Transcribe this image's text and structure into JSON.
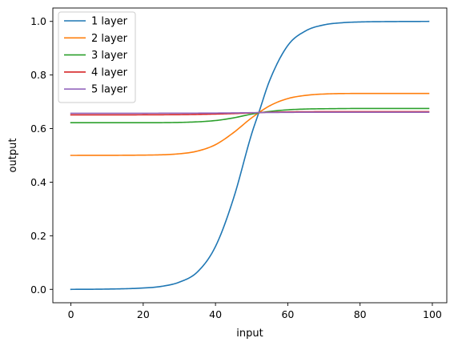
{
  "chart_data": {
    "type": "line",
    "xlabel": "input",
    "ylabel": "output",
    "xlim": [
      -5,
      104
    ],
    "ylim": [
      -0.05,
      1.05
    ],
    "x_ticks": [
      0,
      20,
      40,
      60,
      80,
      100
    ],
    "y_ticks": [
      0.0,
      0.2,
      0.4,
      0.6,
      0.8,
      1.0
    ],
    "x_tick_labels": [
      "0",
      "20",
      "40",
      "60",
      "80",
      "100"
    ],
    "y_tick_labels": [
      "0.0",
      "0.2",
      "0.4",
      "0.6",
      "0.8",
      "1.0"
    ],
    "grid": false,
    "legend_position": "upper-left",
    "x_range": [
      0,
      99
    ],
    "series": [
      {
        "name": "1 layer",
        "color": "#1f77b4",
        "x": [
          0,
          10,
          20,
          25,
          30,
          35,
          40,
          45,
          50,
          52,
          55,
          60,
          65,
          70,
          75,
          80,
          90,
          99
        ],
        "y": [
          0.0,
          0.001,
          0.005,
          0.011,
          0.027,
          0.065,
          0.16,
          0.34,
          0.58,
          0.66,
          0.78,
          0.91,
          0.965,
          0.987,
          0.995,
          0.998,
          0.9995,
          1.0
        ]
      },
      {
        "name": "2 layer",
        "color": "#ff7f0e",
        "x": [
          0,
          20,
          30,
          35,
          40,
          45,
          50,
          55,
          60,
          65,
          70,
          80,
          99
        ],
        "y": [
          0.5,
          0.501,
          0.506,
          0.516,
          0.54,
          0.585,
          0.64,
          0.685,
          0.712,
          0.724,
          0.729,
          0.731,
          0.731
        ]
      },
      {
        "name": "3 layer",
        "color": "#2ca02c",
        "x": [
          0,
          20,
          30,
          40,
          45,
          50,
          55,
          60,
          65,
          70,
          80,
          99
        ],
        "y": [
          0.622,
          0.622,
          0.623,
          0.63,
          0.64,
          0.654,
          0.664,
          0.67,
          0.673,
          0.674,
          0.675,
          0.675
        ]
      },
      {
        "name": "4 layer",
        "color": "#d62728",
        "x": [
          0,
          30,
          45,
          55,
          70,
          99
        ],
        "y": [
          0.651,
          0.652,
          0.656,
          0.661,
          0.663,
          0.663
        ]
      },
      {
        "name": "5 layer",
        "color": "#9467bd",
        "x": [
          0,
          40,
          55,
          70,
          99
        ],
        "y": [
          0.657,
          0.658,
          0.66,
          0.661,
          0.661
        ]
      }
    ]
  }
}
